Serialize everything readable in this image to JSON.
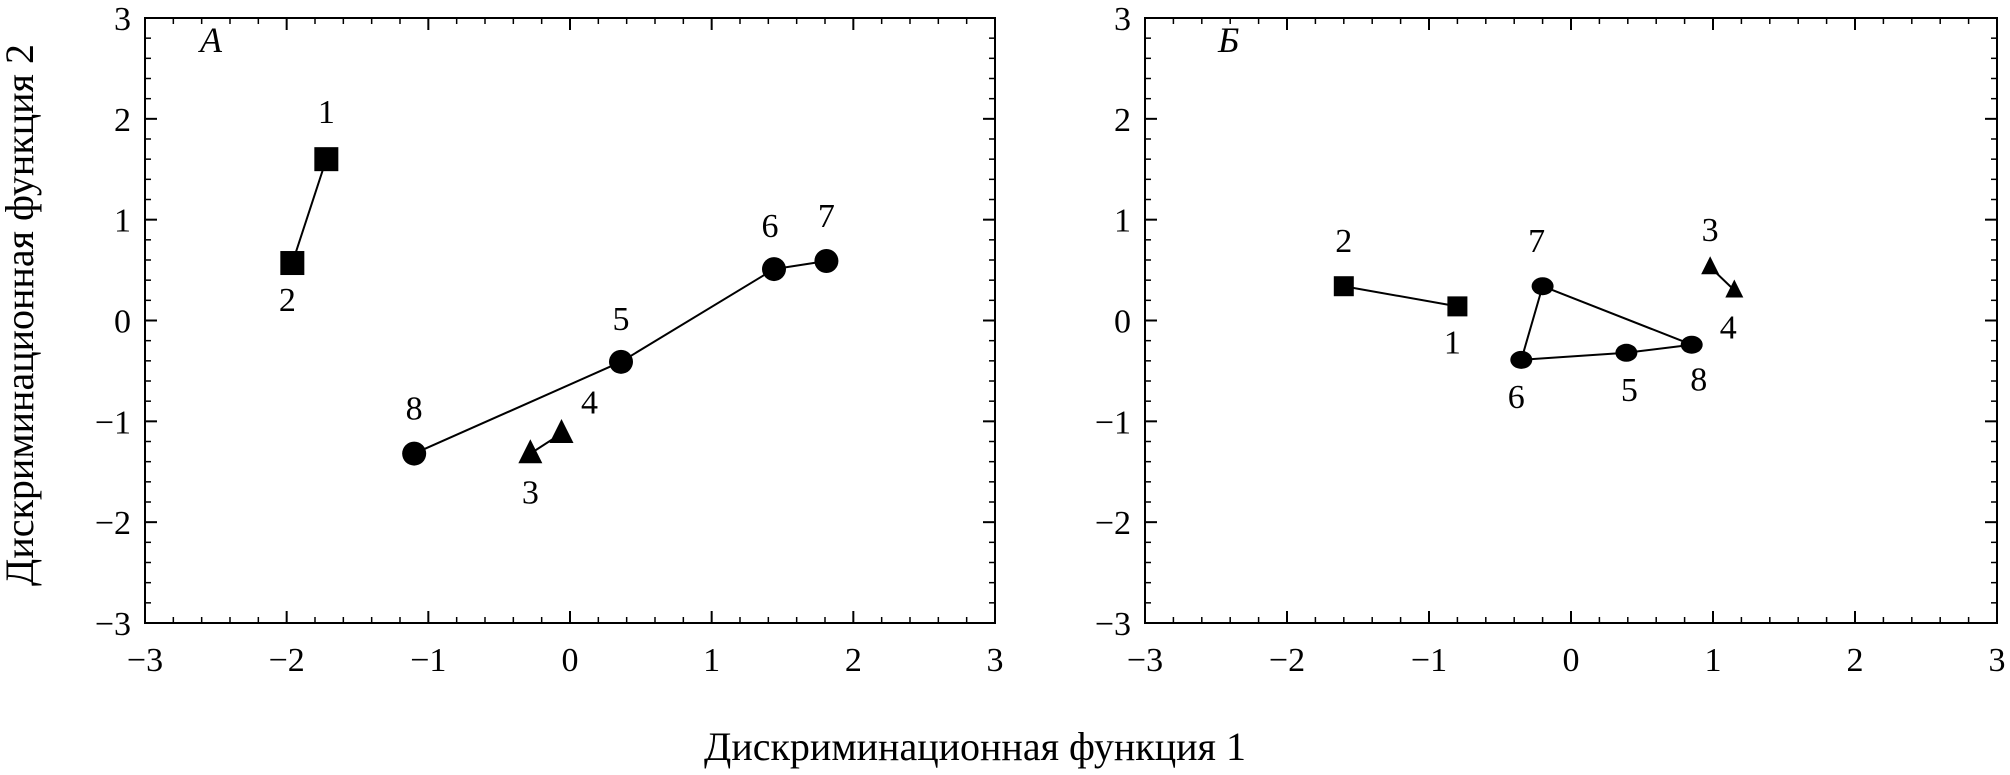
{
  "chart_data": [
    {
      "type": "scatter",
      "panel_label": "А",
      "xlabel": "Дискриминационная функция 1",
      "ylabel": "Дискриминационная функция 2",
      "xlim": [
        -3,
        3
      ],
      "ylim": [
        -3,
        3
      ],
      "xticks": [
        "−3",
        "−2",
        "−1",
        "0",
        "1",
        "2",
        "3"
      ],
      "yticks": [
        "3",
        "2",
        "1",
        "0",
        "−1",
        "−2",
        "−3"
      ],
      "grid": false,
      "points": [
        {
          "label": "1",
          "x": -1.72,
          "y": 1.6,
          "marker": "square"
        },
        {
          "label": "2",
          "x": -1.96,
          "y": 0.57,
          "marker": "square"
        },
        {
          "label": "3",
          "x": -0.28,
          "y": -1.32,
          "marker": "triangle"
        },
        {
          "label": "4",
          "x": -0.06,
          "y": -1.12,
          "marker": "triangle"
        },
        {
          "label": "5",
          "x": 0.36,
          "y": -0.41,
          "marker": "circle"
        },
        {
          "label": "6",
          "x": 1.44,
          "y": 0.51,
          "marker": "circle"
        },
        {
          "label": "7",
          "x": 1.81,
          "y": 0.59,
          "marker": "circle"
        },
        {
          "label": "8",
          "x": -1.1,
          "y": -1.32,
          "marker": "circle"
        }
      ],
      "connections": [
        [
          "1",
          "2"
        ],
        [
          "3",
          "4"
        ],
        [
          "8",
          "5"
        ],
        [
          "5",
          "6"
        ],
        [
          "6",
          "7"
        ]
      ]
    },
    {
      "type": "scatter",
      "panel_label": "Б",
      "xlabel": "Дискриминационная функция 1",
      "ylabel": "Дискриминационная функция 2",
      "xlim": [
        -3,
        3
      ],
      "ylim": [
        -3,
        3
      ],
      "xticks": [
        "−3",
        "−2",
        "−1",
        "0",
        "1",
        "2",
        "3"
      ],
      "yticks": [
        "3",
        "2",
        "1",
        "0",
        "−1",
        "−2",
        "−3"
      ],
      "grid": false,
      "points": [
        {
          "label": "1",
          "x": -0.8,
          "y": 0.14,
          "marker": "square"
        },
        {
          "label": "2",
          "x": -1.6,
          "y": 0.34,
          "marker": "square"
        },
        {
          "label": "3",
          "x": 0.98,
          "y": 0.53,
          "marker": "triangle"
        },
        {
          "label": "4",
          "x": 1.15,
          "y": 0.3,
          "marker": "triangle"
        },
        {
          "label": "5",
          "x": 0.39,
          "y": -0.32,
          "marker": "circle"
        },
        {
          "label": "6",
          "x": -0.35,
          "y": -0.39,
          "marker": "circle"
        },
        {
          "label": "7",
          "x": -0.2,
          "y": 0.34,
          "marker": "circle"
        },
        {
          "label": "8",
          "x": 0.85,
          "y": -0.24,
          "marker": "circle"
        }
      ],
      "connections": [
        [
          "2",
          "1"
        ],
        [
          "3",
          "4"
        ],
        [
          "6",
          "7"
        ],
        [
          "7",
          "8"
        ],
        [
          "6",
          "5"
        ],
        [
          "5",
          "8"
        ]
      ]
    }
  ]
}
